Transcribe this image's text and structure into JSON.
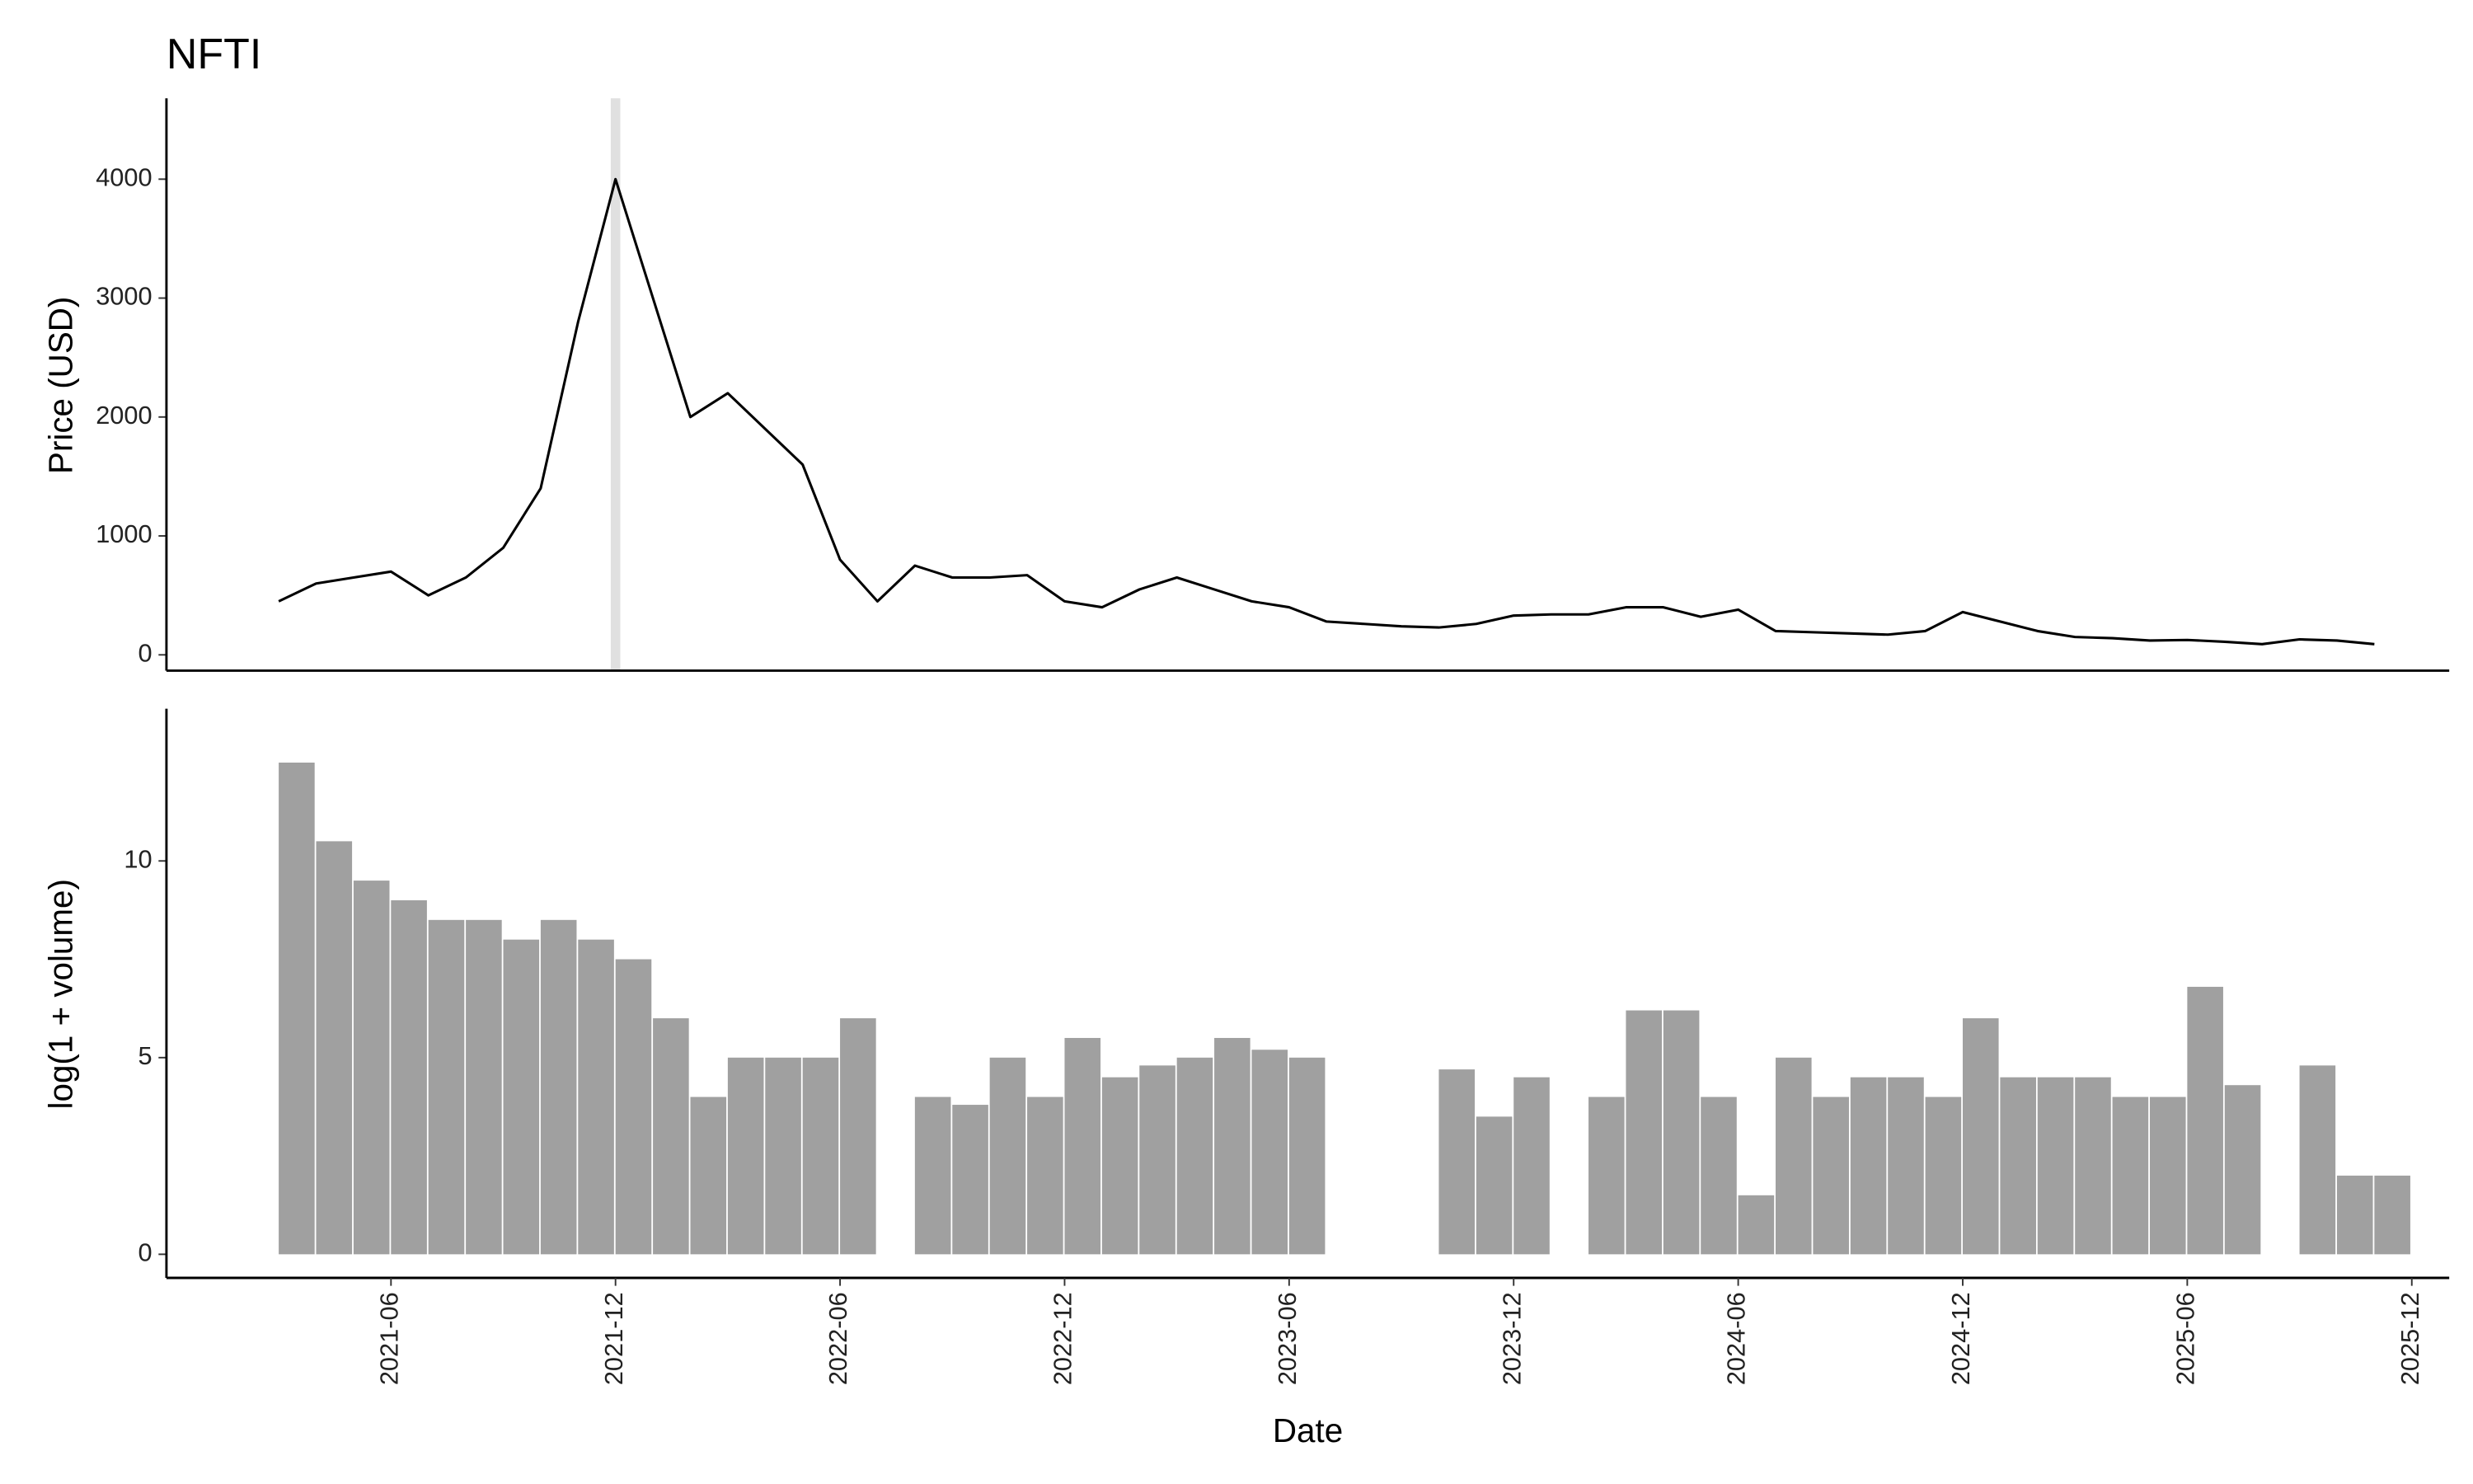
{
  "chart_data": [
    {
      "type": "line",
      "title": "NFTI",
      "ylabel": "Price (USD)",
      "color": "#000000",
      "highlight": "2021-12",
      "highlight_color": "#e0e0e0",
      "x": [
        "2021-03",
        "2021-04",
        "2021-05",
        "2021-06",
        "2021-07",
        "2021-08",
        "2021-09",
        "2021-10",
        "2021-11",
        "2021-12",
        "2022-01",
        "2022-02",
        "2022-03",
        "2022-04",
        "2022-05",
        "2022-06",
        "2022-07",
        "2022-08",
        "2022-09",
        "2022-10",
        "2022-11",
        "2022-12",
        "2023-01",
        "2023-02",
        "2023-03",
        "2023-04",
        "2023-05",
        "2023-06",
        "2023-07",
        "2023-08",
        "2023-09",
        "2023-10",
        "2023-11",
        "2023-12",
        "2024-01",
        "2024-02",
        "2024-03",
        "2024-04",
        "2024-05",
        "2024-06",
        "2024-07",
        "2024-08",
        "2024-09",
        "2024-10",
        "2024-11",
        "2024-12",
        "2025-01",
        "2025-02",
        "2025-03",
        "2025-04",
        "2025-05",
        "2025-06",
        "2025-07",
        "2025-08",
        "2025-09",
        "2025-10",
        "2025-11"
      ],
      "values": [
        450,
        600,
        650,
        700,
        500,
        650,
        900,
        1400,
        2800,
        4000,
        3000,
        2000,
        2200,
        1900,
        1600,
        800,
        450,
        750,
        650,
        650,
        670,
        450,
        400,
        550,
        650,
        550,
        450,
        400,
        280,
        260,
        240,
        230,
        260,
        330,
        340,
        340,
        400,
        400,
        320,
        380,
        200,
        190,
        180,
        170,
        200,
        360,
        280,
        200,
        150,
        140,
        120,
        125,
        110,
        90,
        130,
        120,
        90
      ],
      "xlim": [
        "2020-12",
        "2026-01"
      ],
      "ylim": [
        -133,
        4680
      ],
      "yticks": [
        0,
        1000,
        2000,
        3000,
        4000
      ]
    },
    {
      "type": "bar",
      "ylabel": "log(1 + volume)",
      "xlabel": "Date",
      "color": "#a0a0a0",
      "x": [
        "2021-03",
        "2021-04",
        "2021-05",
        "2021-06",
        "2021-07",
        "2021-08",
        "2021-09",
        "2021-10",
        "2021-11",
        "2021-12",
        "2022-01",
        "2022-02",
        "2022-03",
        "2022-04",
        "2022-05",
        "2022-06",
        "2022-07",
        "2022-08",
        "2022-09",
        "2022-10",
        "2022-11",
        "2022-12",
        "2023-01",
        "2023-02",
        "2023-03",
        "2023-04",
        "2023-05",
        "2023-06",
        "2023-07",
        "2023-08",
        "2023-09",
        "2023-10",
        "2023-11",
        "2023-12",
        "2024-01",
        "2024-02",
        "2024-03",
        "2024-04",
        "2024-05",
        "2024-06",
        "2024-07",
        "2024-08",
        "2024-09",
        "2024-10",
        "2024-11",
        "2024-12",
        "2025-01",
        "2025-02",
        "2025-03",
        "2025-04",
        "2025-05",
        "2025-06",
        "2025-07",
        "2025-08",
        "2025-09",
        "2025-10",
        "2025-11"
      ],
      "values": [
        12.5,
        10.5,
        9.5,
        9,
        8.5,
        8.5,
        8,
        8.5,
        8,
        7.5,
        6,
        4,
        5,
        5,
        5,
        6,
        null,
        4,
        3.8,
        5,
        4,
        5.5,
        4.5,
        4.8,
        5,
        5.5,
        5.2,
        5,
        null,
        null,
        null,
        4.7,
        3.5,
        4.5,
        null,
        4,
        6.2,
        6.2,
        4,
        1.5,
        5,
        4,
        4.5,
        4.5,
        4,
        6,
        4.5,
        4.5,
        4.5,
        4,
        4,
        6.8,
        4.3,
        null,
        4.8,
        2,
        2
      ],
      "xlim": [
        "2020-12",
        "2026-01"
      ],
      "ylim": [
        -0.6,
        13.87
      ],
      "yticks": [
        0,
        5,
        10
      ],
      "xticks": [
        "2021-06",
        "2021-12",
        "2022-06",
        "2022-12",
        "2023-06",
        "2023-12",
        "2024-06",
        "2024-12",
        "2025-06",
        "2025-12"
      ]
    }
  ]
}
